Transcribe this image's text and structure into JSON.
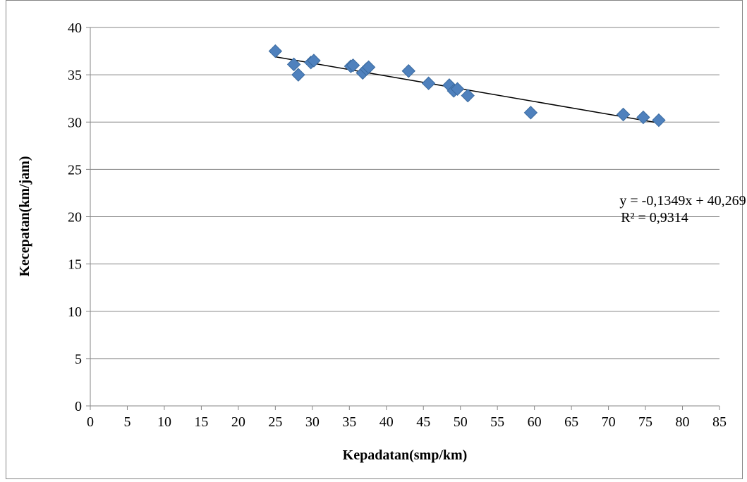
{
  "chart_data": {
    "type": "scatter",
    "title": "",
    "xlabel": "Kepadatan(smp/km)",
    "ylabel": "Kecepatan(km/jam)",
    "xlim": [
      0,
      85
    ],
    "ylim": [
      0,
      40
    ],
    "x_ticks": [
      "0",
      "5",
      "10",
      "15",
      "20",
      "25",
      "30",
      "35",
      "40",
      "45",
      "50",
      "55",
      "60",
      "65",
      "70",
      "75",
      "80",
      "85"
    ],
    "y_ticks": [
      "0",
      "5",
      "10",
      "15",
      "20",
      "25",
      "30",
      "35",
      "40"
    ],
    "grid": "horizontal",
    "marker": "diamond",
    "marker_color": "#4F81BD",
    "series": [
      {
        "points": [
          {
            "x": 25.0,
            "y": 37.5
          },
          {
            "x": 27.5,
            "y": 36.1
          },
          {
            "x": 28.1,
            "y": 35.0
          },
          {
            "x": 29.8,
            "y": 36.3
          },
          {
            "x": 30.2,
            "y": 36.5
          },
          {
            "x": 35.2,
            "y": 35.9
          },
          {
            "x": 35.5,
            "y": 36.0
          },
          {
            "x": 36.8,
            "y": 35.2
          },
          {
            "x": 37.3,
            "y": 35.6
          },
          {
            "x": 37.6,
            "y": 35.8
          },
          {
            "x": 43.0,
            "y": 35.4
          },
          {
            "x": 45.7,
            "y": 34.1
          },
          {
            "x": 48.5,
            "y": 33.9
          },
          {
            "x": 49.1,
            "y": 33.3
          },
          {
            "x": 49.6,
            "y": 33.5
          },
          {
            "x": 51.0,
            "y": 32.8
          },
          {
            "x": 59.5,
            "y": 31.0
          },
          {
            "x": 72.0,
            "y": 30.8
          },
          {
            "x": 74.7,
            "y": 30.5
          },
          {
            "x": 76.8,
            "y": 30.2
          }
        ]
      }
    ],
    "trendline": {
      "type": "linear",
      "slope": -0.1349,
      "intercept": 40.269,
      "x_range": [
        25,
        76.8
      ],
      "color": "#000000",
      "equation": "y = -0,1349x + 40,269",
      "r_squared": "R² = 0,9314"
    }
  }
}
